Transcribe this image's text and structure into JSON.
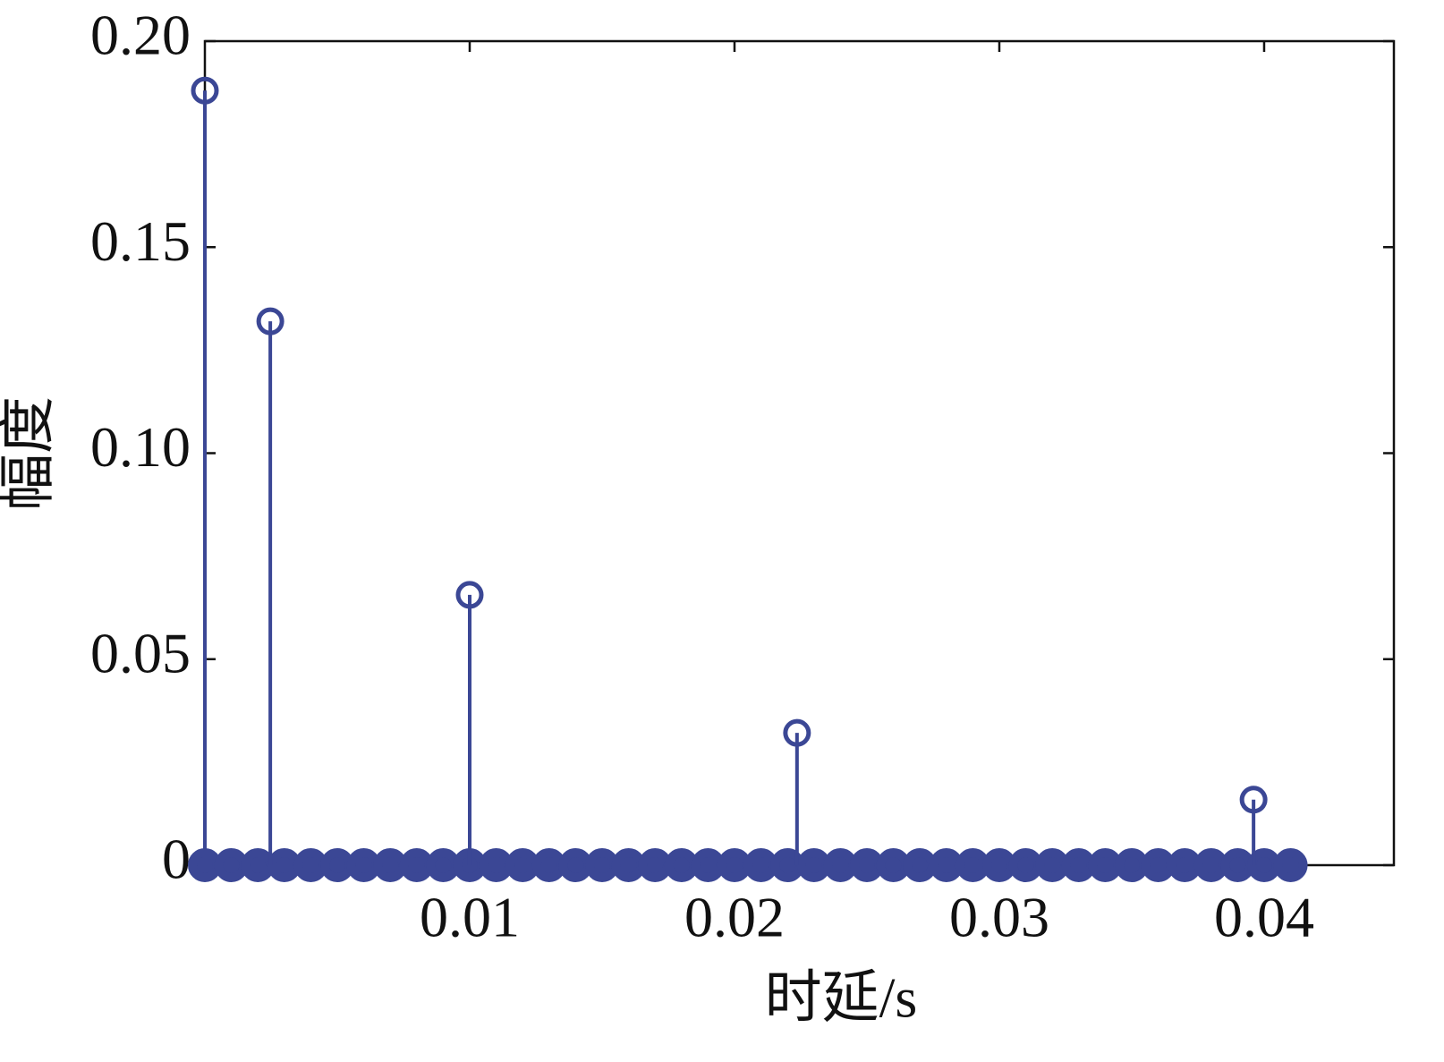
{
  "chart_data": {
    "type": "stem",
    "x_label": "时延/s",
    "y_label": "幅度",
    "xlim": [
      0,
      0.0449
    ],
    "ylim": [
      0,
      0.2
    ],
    "xticks": [
      0.01,
      0.02,
      0.03,
      0.04
    ],
    "yticks": [
      0,
      0.05,
      {
        "value": 0.1,
        "label": "0.10"
      },
      0.15,
      {
        "value": 0.2,
        "label": "0.20"
      }
    ],
    "series": [
      {
        "color": "#3b4795",
        "x": [
          0,
          0.001,
          0.002,
          0.003,
          0.004,
          0.005,
          0.006,
          0.007,
          0.008,
          0.009,
          0.01,
          0.011,
          0.012,
          0.013,
          0.014,
          0.015,
          0.016,
          0.017,
          0.018,
          0.019,
          0.02,
          0.021,
          0.022,
          0.023,
          0.024,
          0.025,
          0.026,
          0.027,
          0.028,
          0.029,
          0.03,
          0.031,
          0.032,
          0.033,
          0.034,
          0.035,
          0.036,
          0.037,
          0.038,
          0.039,
          0.04,
          0.041
        ],
        "values": [
          0,
          0,
          0,
          0,
          0,
          0,
          0,
          0,
          0,
          0,
          0,
          0,
          0,
          0,
          0,
          0,
          0,
          0,
          0,
          0,
          0,
          0,
          0,
          0,
          0,
          0,
          0,
          0,
          0,
          0,
          0,
          0,
          0,
          0,
          0,
          0,
          0,
          0,
          0,
          0,
          0,
          0
        ]
      },
      {
        "color": "#3b4795",
        "x": [
          0,
          0.00247,
          0.01,
          0.02236,
          0.0396
        ],
        "values": [
          0.188,
          0.132,
          0.0656,
          0.0321,
          0.0159
        ]
      }
    ]
  }
}
